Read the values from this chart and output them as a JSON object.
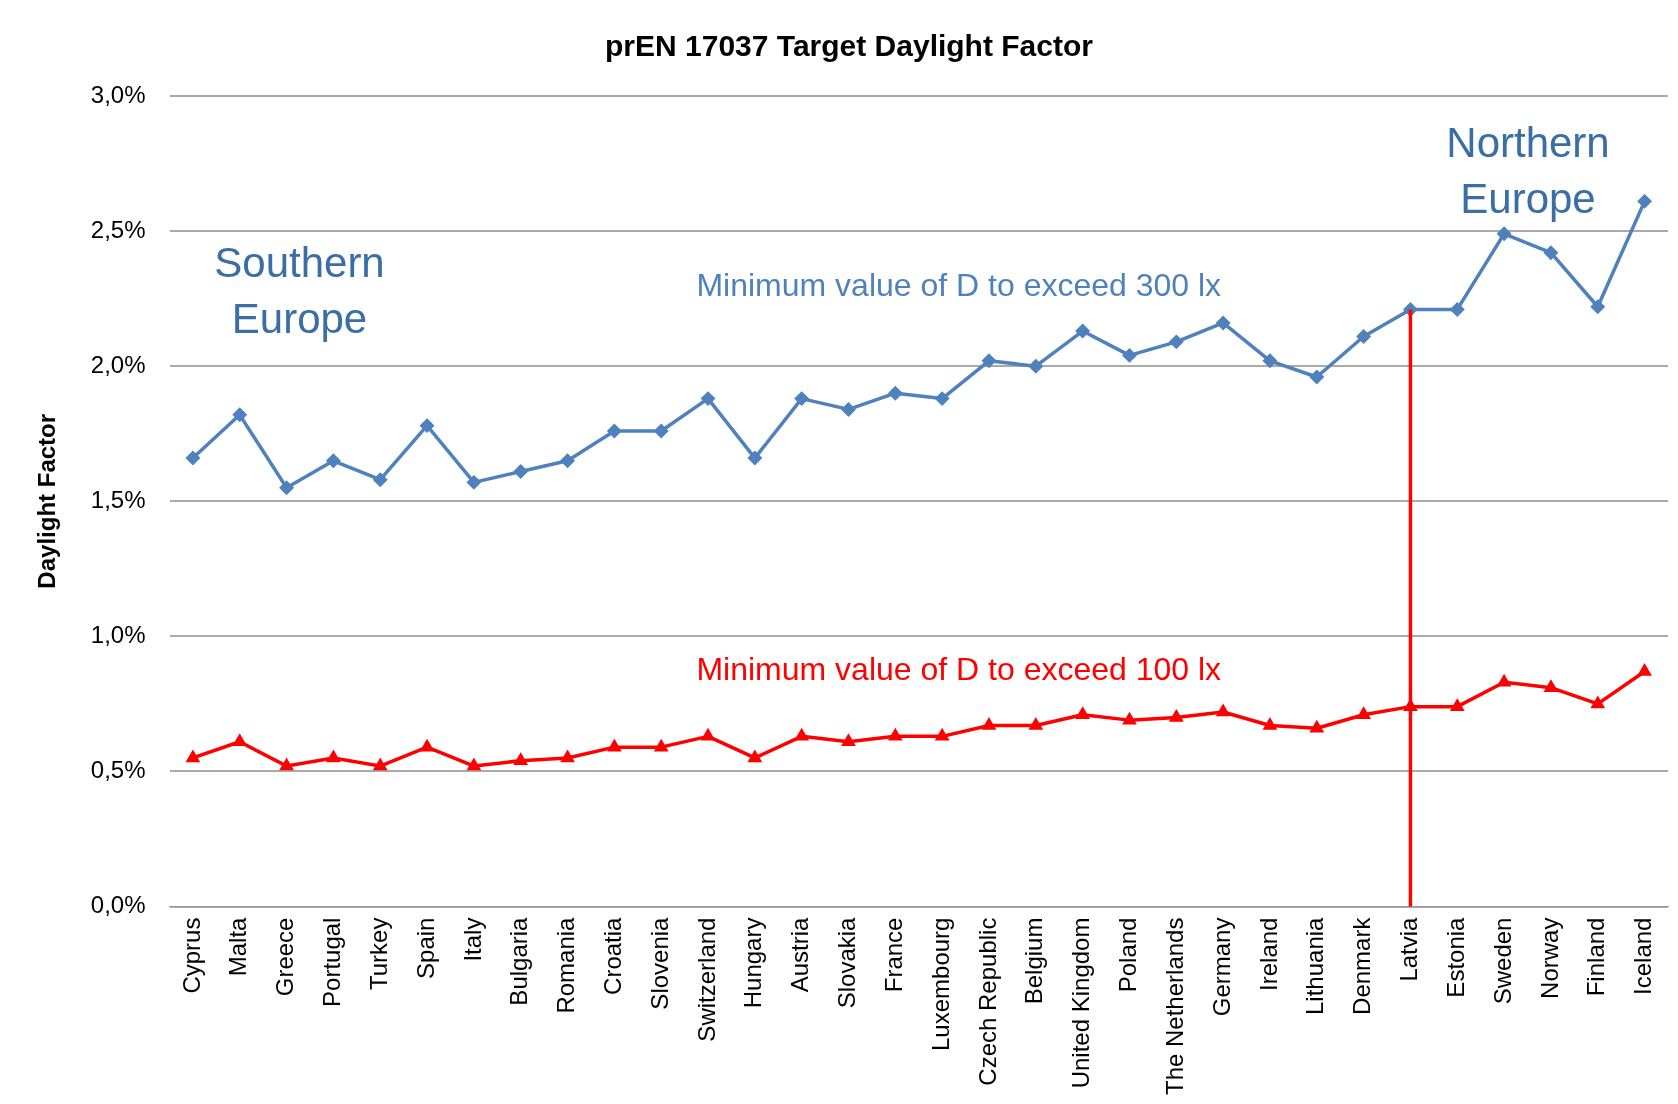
{
  "chart_data": {
    "type": "line",
    "title": "prEN 17037 Target Daylight Factor",
    "ylabel": "Daylight Factor",
    "categories": [
      "Cyprus",
      "Malta",
      "Greece",
      "Portugal",
      "Turkey",
      "Spain",
      "Italy",
      "Bulgaria",
      "Romania",
      "Croatia",
      "Slovenia",
      "Switzerland",
      "Hungary",
      "Austria",
      "Slovakia",
      "France",
      "Luxembourg",
      "Czech Republic",
      "Belgium",
      "United Kingdom",
      "Poland",
      "The Netherlands",
      "Germany",
      "Ireland",
      "Lithuania",
      "Denmark",
      "Latvia",
      "Estonia",
      "Sweden",
      "Norway",
      "Finland",
      "Iceland"
    ],
    "series": [
      {
        "name": "Minimum value of D to exceed 300 lx",
        "color": "#4f81bd",
        "marker": "diamond",
        "values": [
          1.66,
          1.82,
          1.55,
          1.65,
          1.58,
          1.78,
          1.57,
          1.61,
          1.65,
          1.76,
          1.76,
          1.88,
          1.66,
          1.88,
          1.84,
          1.9,
          1.88,
          2.02,
          2.0,
          2.13,
          2.04,
          2.09,
          2.16,
          2.02,
          1.96,
          2.11,
          2.21,
          2.21,
          2.49,
          2.42,
          2.22,
          2.61
        ]
      },
      {
        "name": "Minimum value of D to exceed 100 lx",
        "color": "#ff0000",
        "marker": "triangle",
        "values": [
          0.55,
          0.61,
          0.52,
          0.55,
          0.52,
          0.59,
          0.52,
          0.54,
          0.55,
          0.59,
          0.59,
          0.63,
          0.55,
          0.63,
          0.61,
          0.63,
          0.63,
          0.67,
          0.67,
          0.71,
          0.69,
          0.7,
          0.72,
          0.67,
          0.66,
          0.71,
          0.74,
          0.74,
          0.83,
          0.81,
          0.75,
          0.87
        ]
      }
    ],
    "ylim": [
      0,
      3
    ],
    "yticks": [
      {
        "value": 0,
        "label": "0,0%"
      },
      {
        "value": 0.5,
        "label": "0,5%"
      },
      {
        "value": 1,
        "label": "1,0%"
      },
      {
        "value": 1.5,
        "label": "1,5%"
      },
      {
        "value": 2,
        "label": "2,0%"
      },
      {
        "value": 2.5,
        "label": "2,5%"
      },
      {
        "value": 3,
        "label": "3,0%"
      }
    ],
    "grid": "y",
    "legend": false,
    "ref_lines": [
      {
        "axis": "x",
        "value": "Latvia",
        "color": "#ff0000"
      }
    ],
    "annotations": [
      "Southern Europe",
      "Northern Europe"
    ]
  }
}
